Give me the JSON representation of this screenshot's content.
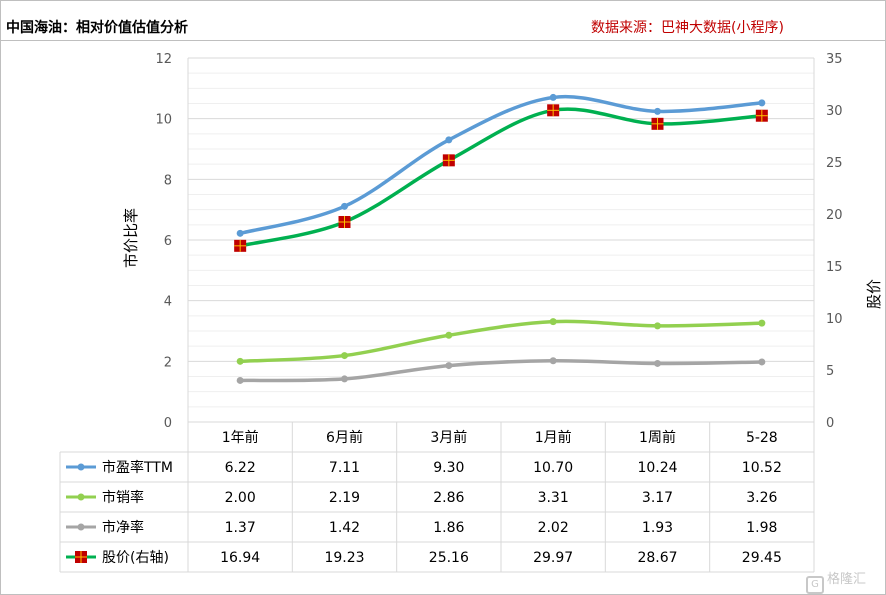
{
  "header": {
    "title": "中国海油：相对价值估值分析",
    "source": "数据来源：巴神大数据(小程序)",
    "watermark": "格隆汇"
  },
  "chart_data": {
    "type": "line",
    "categories": [
      "1年前",
      "6月前",
      "3月前",
      "1月前",
      "1周前",
      "5-28"
    ],
    "ylabel": "市价比率",
    "ylabel_right": "股价",
    "ylim": [
      0,
      12
    ],
    "yticks": [
      "0",
      "2",
      "4",
      "6",
      "8",
      "10",
      "12"
    ],
    "ylim_right": [
      0,
      35
    ],
    "yticks_right": [
      "0",
      "5",
      "10",
      "15",
      "20",
      "25",
      "30",
      "35"
    ],
    "grid": "horizontal",
    "legend": "data-table",
    "series": [
      {
        "name": "市盈率TTM",
        "axis": "left",
        "color": "#5b9bd5",
        "marker": "circle",
        "values": [
          6.22,
          7.11,
          9.3,
          10.7,
          10.24,
          10.52
        ],
        "labels": [
          "6.22",
          "7.11",
          "9.30",
          "10.70",
          "10.24",
          "10.52"
        ]
      },
      {
        "name": "市销率",
        "axis": "left",
        "color": "#92d050",
        "marker": "circle",
        "values": [
          2.0,
          2.19,
          2.86,
          3.31,
          3.17,
          3.26
        ],
        "labels": [
          "2.00",
          "2.19",
          "2.86",
          "3.31",
          "3.17",
          "3.26"
        ]
      },
      {
        "name": "市净率",
        "axis": "left",
        "color": "#a5a5a5",
        "marker": "circle",
        "values": [
          1.37,
          1.42,
          1.86,
          2.02,
          1.93,
          1.98
        ],
        "labels": [
          "1.37",
          "1.42",
          "1.86",
          "2.02",
          "1.93",
          "1.98"
        ]
      },
      {
        "name": "股价(右轴)",
        "axis": "right",
        "color": "#00b050",
        "marker": "square",
        "marker_color": "#c00000",
        "marker_cross": "#ffc000",
        "values": [
          16.94,
          19.23,
          25.16,
          29.97,
          28.67,
          29.45
        ],
        "labels": [
          "16.94",
          "19.23",
          "25.16",
          "29.97",
          "28.67",
          "29.45"
        ]
      }
    ]
  }
}
